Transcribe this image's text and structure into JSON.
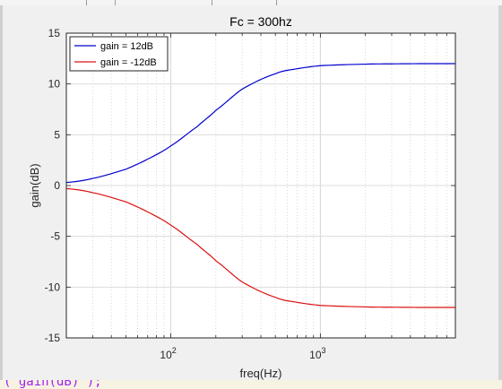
{
  "code_fragment": "('gain(dB)');",
  "chart_data": {
    "type": "line",
    "title": "Fc = 300hz",
    "xlabel": "freq(Hz)",
    "ylabel": "gain(dB)",
    "xscale": "log",
    "xlim": [
      20,
      8000
    ],
    "ylim": [
      -15,
      15
    ],
    "yticks": [
      15,
      10,
      5,
      0,
      -5,
      -10,
      -15
    ],
    "xticks": [
      {
        "value": 100,
        "base": "10",
        "exp": "2"
      },
      {
        "value": 1000,
        "base": "10",
        "exp": "3"
      }
    ],
    "grid": true,
    "minor_grid": true,
    "legend_position": "top-left",
    "series": [
      {
        "name": "gain = 12dB",
        "color": "#0000cc",
        "x": [
          20,
          30,
          50,
          70,
          100,
          150,
          200,
          300,
          500,
          700,
          1000,
          2000,
          3000,
          5000,
          8000
        ],
        "y": [
          0.3,
          0.7,
          1.6,
          2.6,
          3.9,
          5.8,
          7.4,
          9.5,
          11.0,
          11.5,
          11.8,
          11.95,
          11.98,
          12.0,
          12.0
        ]
      },
      {
        "name": "gain = -12dB",
        "color": "#dd1111",
        "x": [
          20,
          30,
          50,
          70,
          100,
          150,
          200,
          300,
          500,
          700,
          1000,
          2000,
          3000,
          5000,
          8000
        ],
        "y": [
          -0.3,
          -0.7,
          -1.6,
          -2.6,
          -3.9,
          -5.8,
          -7.4,
          -9.5,
          -11.0,
          -11.5,
          -11.8,
          -11.95,
          -11.98,
          -12.0,
          -12.0
        ]
      }
    ]
  }
}
